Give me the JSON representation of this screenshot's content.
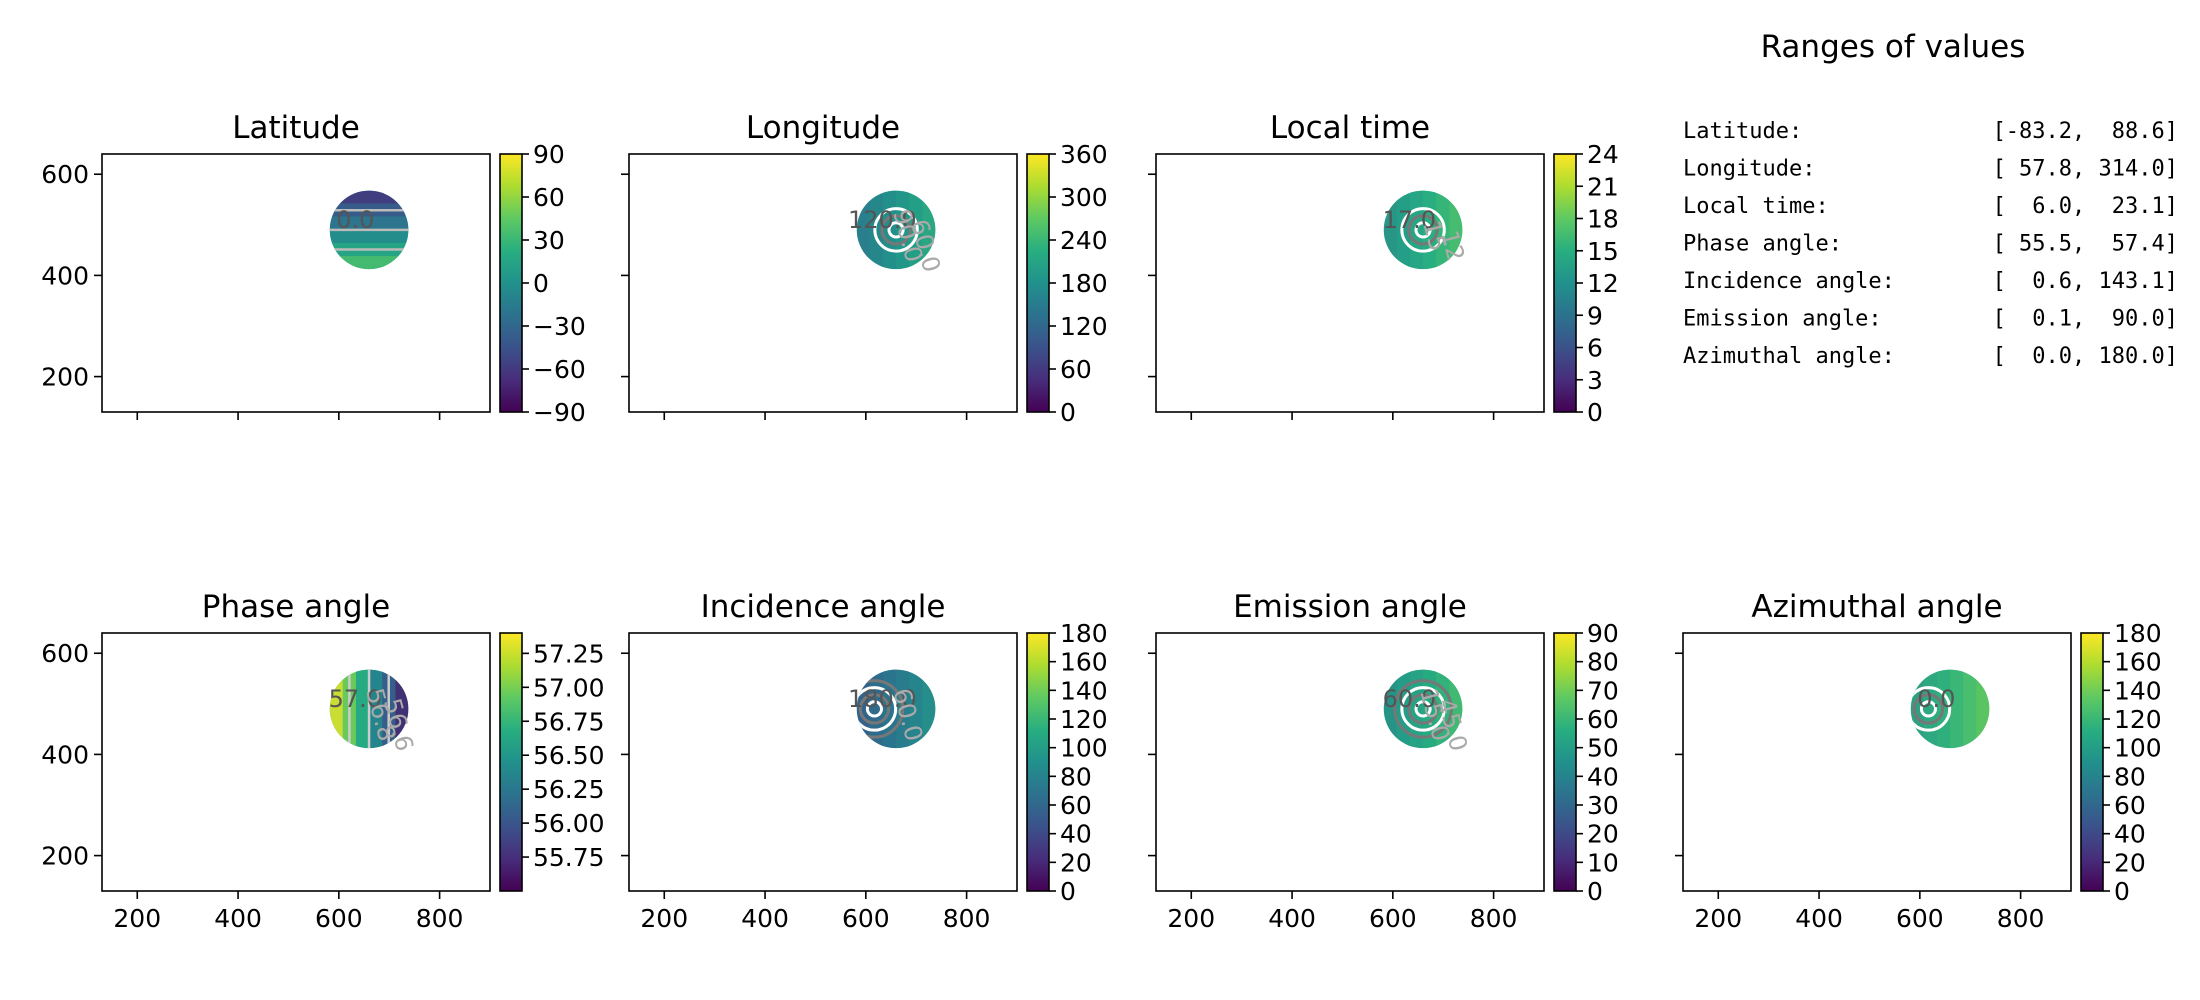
{
  "chart_data": [
    {
      "type": "heatmap",
      "title": "Latitude",
      "xlim": [
        130,
        900
      ],
      "ylim": [
        130,
        640
      ],
      "x_ticks": [],
      "y_ticks": [
        200,
        400,
        600
      ],
      "colorbar": {
        "min": -90,
        "max": 90,
        "ticks": [
          90,
          60,
          30,
          0,
          -30,
          -60,
          -90
        ],
        "tick_labels": [
          "90",
          "60",
          "30",
          "0",
          "−30",
          "−60",
          "−90"
        ]
      },
      "disk": {
        "cx": 660,
        "cy": 490,
        "r": 78,
        "value": 5
      },
      "contour_labels": [
        "0.0"
      ]
    },
    {
      "type": "heatmap",
      "title": "Longitude",
      "xlim": [
        130,
        900
      ],
      "ylim": [
        130,
        640
      ],
      "x_ticks": [],
      "y_ticks": [],
      "colorbar": {
        "min": 0,
        "max": 360,
        "ticks": [
          360,
          300,
          240,
          180,
          120,
          60,
          0
        ],
        "tick_labels": [
          "360",
          "300",
          "240",
          "180",
          "120",
          "60",
          "0"
        ]
      },
      "disk": {
        "cx": 660,
        "cy": 490,
        "r": 78,
        "value": 190
      },
      "contour_labels": [
        "120.0",
        "90.0",
        "60.0"
      ]
    },
    {
      "type": "heatmap",
      "title": "Local time",
      "xlim": [
        130,
        900
      ],
      "ylim": [
        130,
        640
      ],
      "x_ticks": [],
      "y_ticks": [],
      "colorbar": {
        "min": 0,
        "max": 24,
        "ticks": [
          24,
          21,
          18,
          15,
          12,
          9,
          6,
          3,
          0
        ],
        "tick_labels": [
          "24",
          "21",
          "18",
          "15",
          "12",
          "9",
          "6",
          "3",
          "0"
        ]
      },
      "disk": {
        "cx": 660,
        "cy": 490,
        "r": 78,
        "value": 15
      },
      "contour_labels": [
        "17.0",
        "15",
        "12"
      ]
    },
    {
      "type": "heatmap",
      "title": "Phase angle",
      "xlim": [
        130,
        900
      ],
      "ylim": [
        130,
        640
      ],
      "x_ticks": [
        200,
        400,
        600,
        800
      ],
      "y_ticks": [
        200,
        400,
        600
      ],
      "colorbar": {
        "min": 55.5,
        "max": 57.4,
        "ticks": [
          57.25,
          57.0,
          56.75,
          56.5,
          56.25,
          56.0,
          55.75
        ],
        "tick_labels": [
          "57.25",
          "57.00",
          "56.75",
          "56.50",
          "56.25",
          "56.00",
          "55.75"
        ]
      },
      "disk": {
        "cx": 660,
        "cy": 490,
        "r": 78,
        "value": 56.6
      },
      "contour_labels": [
        "57.0",
        "56.8",
        "56.6"
      ]
    },
    {
      "type": "heatmap",
      "title": "Incidence angle",
      "xlim": [
        130,
        900
      ],
      "ylim": [
        130,
        640
      ],
      "x_ticks": [
        200,
        400,
        600,
        800
      ],
      "y_ticks": [],
      "colorbar": {
        "min": 0,
        "max": 180,
        "ticks": [
          180,
          160,
          140,
          120,
          100,
          80,
          60,
          40,
          20,
          0
        ],
        "tick_labels": [
          "180",
          "160",
          "140",
          "120",
          "100",
          "80",
          "60",
          "40",
          "20",
          "0"
        ]
      },
      "disk": {
        "cx": 660,
        "cy": 490,
        "r": 78,
        "value": 75
      },
      "contour_labels": [
        "180.0",
        "60.0"
      ]
    },
    {
      "type": "heatmap",
      "title": "Emission angle",
      "xlim": [
        130,
        900
      ],
      "ylim": [
        130,
        640
      ],
      "x_ticks": [
        200,
        400,
        600,
        800
      ],
      "y_ticks": [],
      "colorbar": {
        "min": 0,
        "max": 90,
        "ticks": [
          90,
          80,
          70,
          60,
          50,
          40,
          30,
          20,
          10,
          0
        ],
        "tick_labels": [
          "90",
          "80",
          "70",
          "60",
          "50",
          "40",
          "30",
          "20",
          "10",
          "0"
        ]
      },
      "disk": {
        "cx": 660,
        "cy": 490,
        "r": 78,
        "value": 55
      },
      "contour_labels": [
        "60.0",
        "15.0",
        "45.0"
      ]
    },
    {
      "type": "heatmap",
      "title": "Azimuthal angle",
      "xlim": [
        130,
        900
      ],
      "ylim": [
        130,
        640
      ],
      "x_ticks": [
        200,
        400,
        600,
        800
      ],
      "y_ticks": [],
      "colorbar": {
        "min": 0,
        "max": 180,
        "ticks": [
          180,
          160,
          140,
          120,
          100,
          80,
          60,
          40,
          20,
          0
        ],
        "tick_labels": [
          "180",
          "160",
          "140",
          "120",
          "100",
          "80",
          "60",
          "40",
          "20",
          "0"
        ]
      },
      "disk": {
        "cx": 660,
        "cy": 490,
        "r": 78,
        "value": 120
      },
      "contour_labels": [
        "0.0"
      ]
    }
  ],
  "ranges": {
    "title": "Ranges of values",
    "rows": [
      {
        "label": "Latitude:",
        "value": "[-83.2,  88.6]"
      },
      {
        "label": "Longitude:",
        "value": "[ 57.8, 314.0]"
      },
      {
        "label": "Local time:",
        "value": "[  6.0,  23.1]"
      },
      {
        "label": "Phase angle:",
        "value": "[ 55.5,  57.4]"
      },
      {
        "label": "Incidence angle:",
        "value": "[  0.6, 143.1]"
      },
      {
        "label": "Emission angle:",
        "value": "[  0.1,  90.0]"
      },
      {
        "label": "Azimuthal angle:",
        "value": "[  0.0, 180.0]"
      }
    ]
  }
}
